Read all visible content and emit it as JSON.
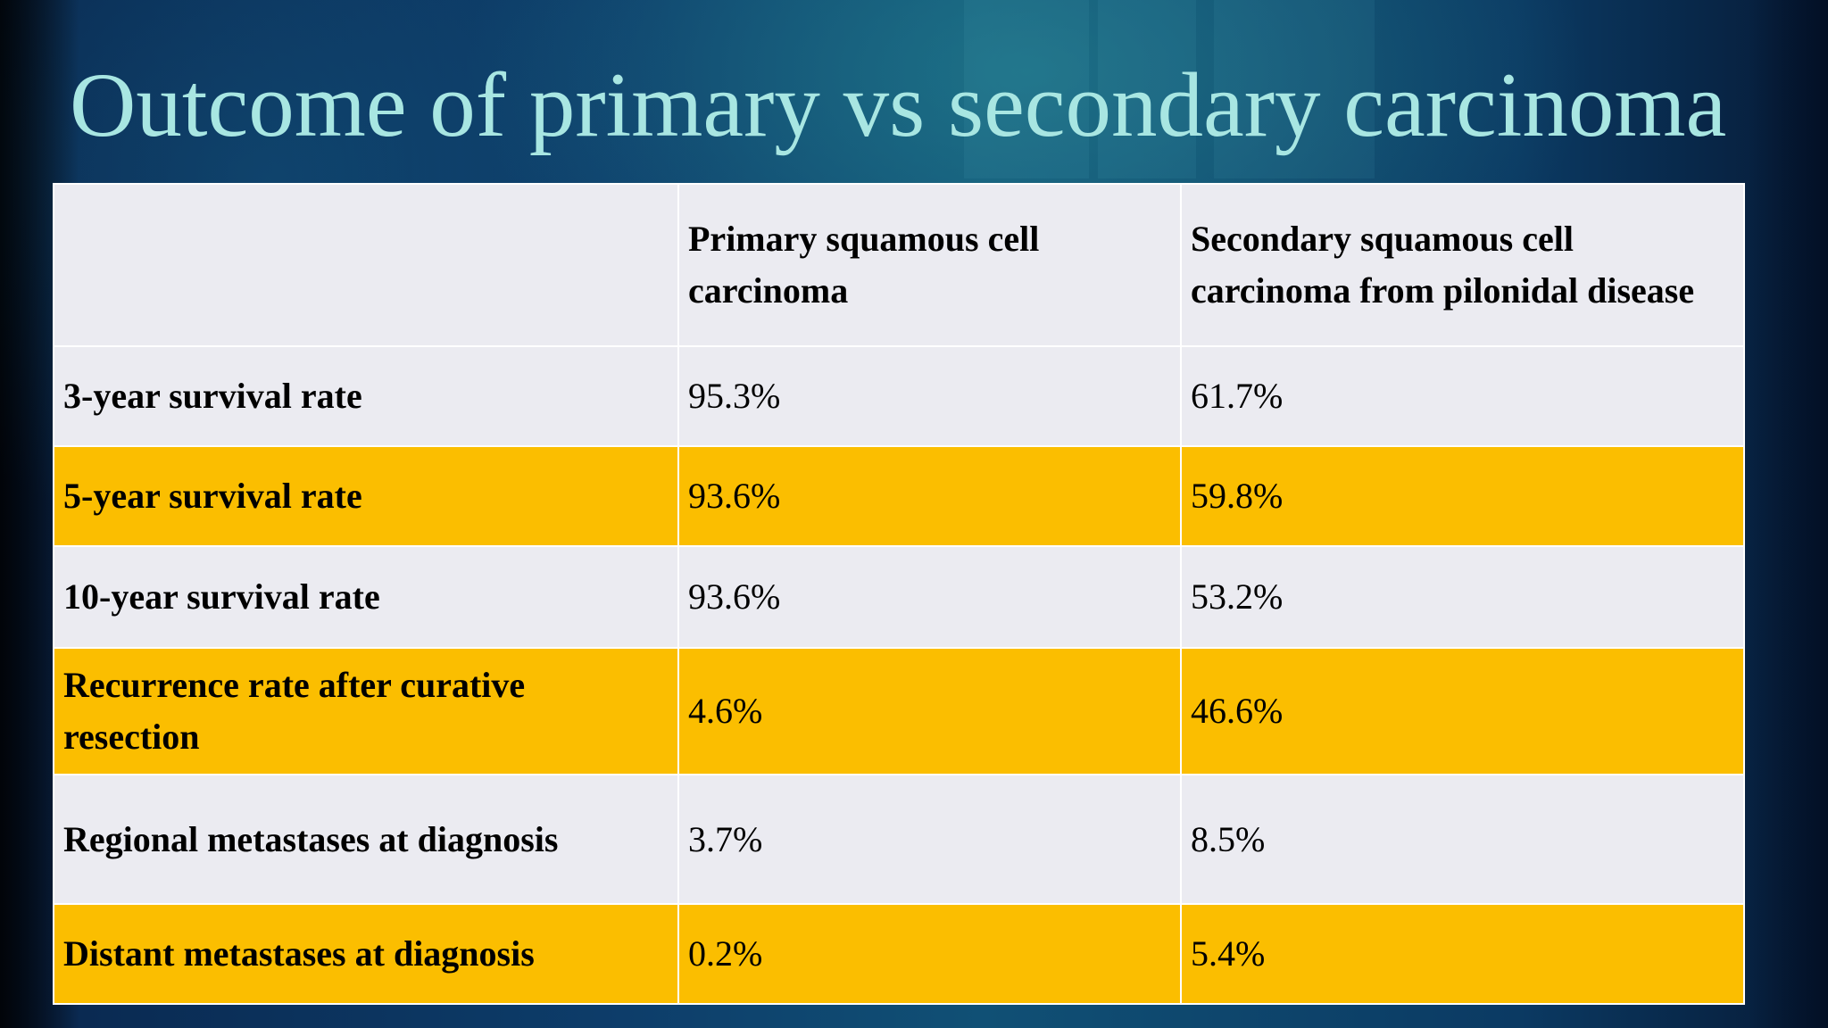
{
  "slide": {
    "title": "Outcome of primary vs secondary carcinoma",
    "colors": {
      "title_text": "#a8e6e2",
      "row_light": "#ebebf1",
      "row_highlight": "#fbbe00",
      "background": "#0d3d6a"
    }
  },
  "table": {
    "headers": [
      "",
      "Primary squamous cell carcinoma",
      "Secondary squamous cell carcinoma from pilonidal disease"
    ],
    "rows": [
      {
        "label": "3-year survival rate",
        "primary": "95.3%",
        "secondary": "61.7%",
        "style": "light"
      },
      {
        "label": "5-year survival rate",
        "primary": "93.6%",
        "secondary": "59.8%",
        "style": "highlight"
      },
      {
        "label": "10-year survival rate",
        "primary": "93.6%",
        "secondary": "53.2%",
        "style": "light"
      },
      {
        "label": "Recurrence rate after curative resection",
        "primary": "4.6%",
        "secondary": "46.6%",
        "style": "highlight"
      },
      {
        "label": "Regional metastases at diagnosis",
        "primary": "3.7%",
        "secondary": "8.5%",
        "style": "light"
      },
      {
        "label": "Distant metastases at diagnosis",
        "primary": "0.2%",
        "secondary": "5.4%",
        "style": "highlight"
      }
    ]
  }
}
